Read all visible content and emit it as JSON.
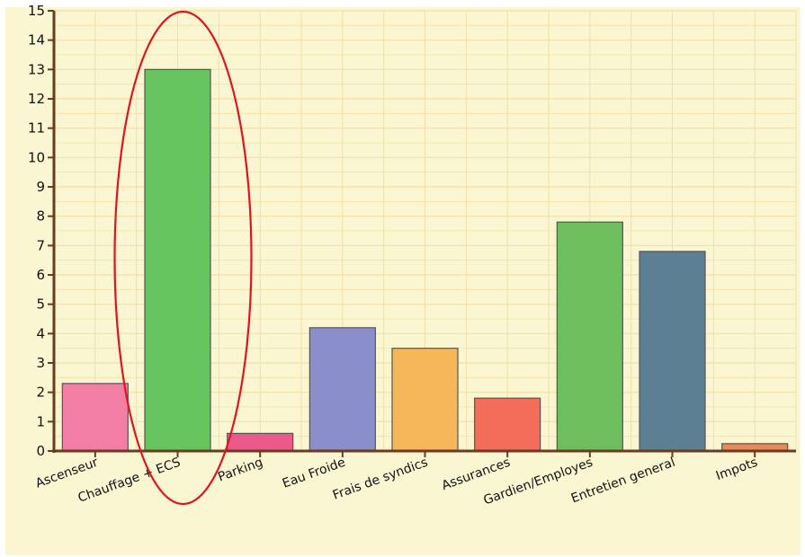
{
  "chart_data": {
    "type": "bar",
    "title": "",
    "xlabel": "",
    "ylabel": "",
    "categories": [
      "Ascenseur",
      "Chauffage + ECS",
      "Parking",
      "Eau Froide",
      "Frais de syndics",
      "Assurances",
      "Gardien/Employes",
      "Entretien general",
      "Impots"
    ],
    "values": [
      2.3,
      13,
      0.6,
      4.2,
      3.5,
      1.8,
      7.8,
      6.8,
      0.25
    ],
    "bar_colors": [
      "#f27ea6",
      "#66c55e",
      "#ec5a8c",
      "#8a8fcb",
      "#f6b75a",
      "#f36d5a",
      "#6cbf5c",
      "#5d7f93",
      "#e88a55"
    ],
    "ylim": [
      0,
      15
    ],
    "yticks": [
      0,
      1,
      2,
      3,
      4,
      5,
      6,
      7,
      8,
      9,
      10,
      11,
      12,
      13,
      14,
      15
    ],
    "grid": true,
    "legend": "none",
    "annotation": {
      "type": "ellipse",
      "target_category": "Chauffage + ECS",
      "color": "#e0141e"
    },
    "colors": {
      "plot_background": "#fbf6d2",
      "grid": "#f1dfa6",
      "axis": "#6b3a1f",
      "bar_stroke": "#555555"
    }
  }
}
